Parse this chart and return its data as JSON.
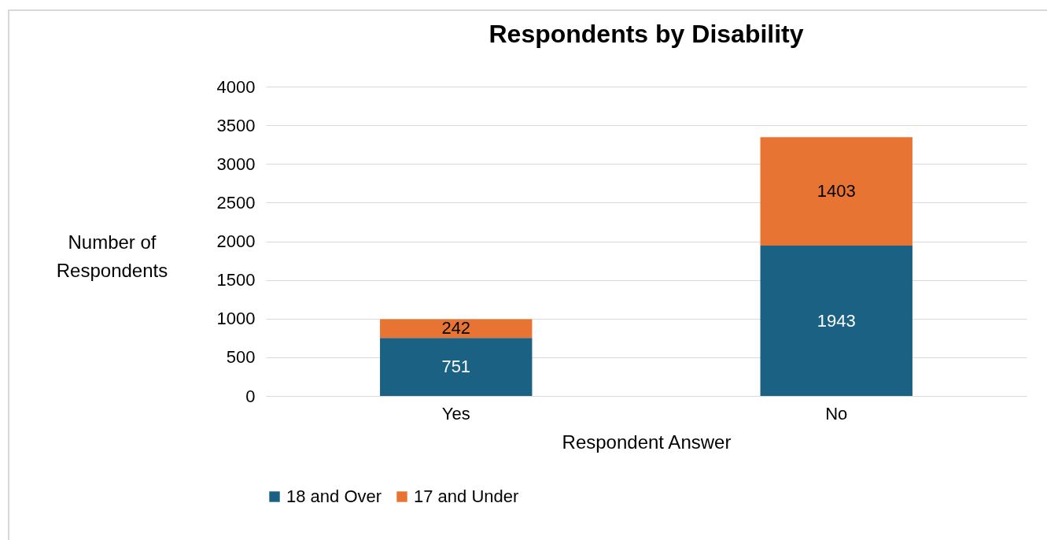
{
  "chart_data": {
    "type": "bar",
    "title": "Respondents by Disability",
    "xlabel": "Respondent Answer",
    "ylabel": "Number of Respondents",
    "categories": [
      "Yes",
      "No"
    ],
    "stacked": true,
    "series": [
      {
        "name": "18 and Over",
        "color": "#1a6183",
        "values": [
          751,
          1943
        ]
      },
      {
        "name": "17 and Under",
        "color": "#e87434",
        "values": [
          242,
          1403
        ]
      }
    ],
    "ylim": [
      0,
      4000
    ],
    "yticks": [
      0,
      500,
      1000,
      1500,
      2000,
      2500,
      3000,
      3500,
      4000
    ],
    "grid": "y",
    "legend": "bottom",
    "data_labels": true
  }
}
